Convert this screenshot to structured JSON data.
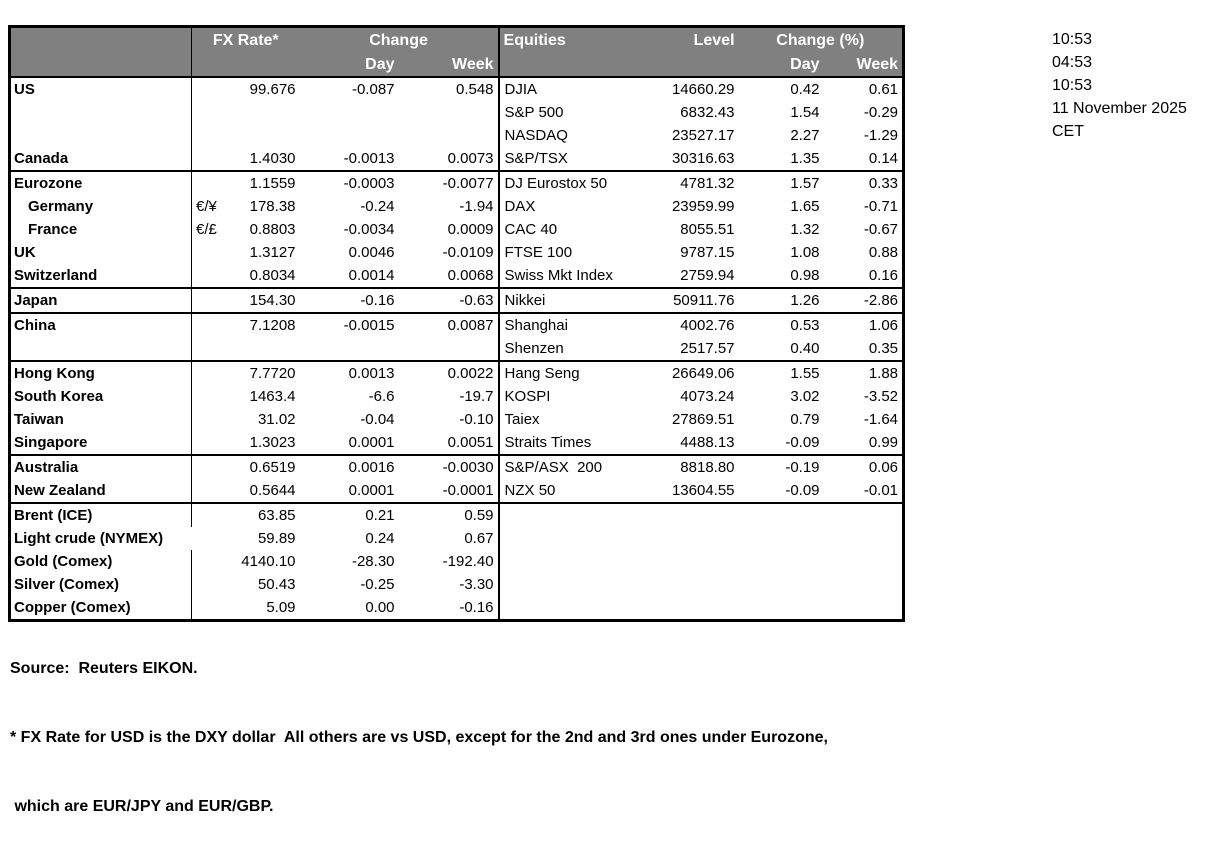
{
  "colors": {
    "header_bg": "#808080",
    "header_text": "#ffffff",
    "border": "#000000"
  },
  "timestamps": [
    "10:53",
    "04:53",
    "10:53",
    "11 November 2025",
    "CET"
  ],
  "footer": {
    "source": "Source:  Reuters EIKON.",
    "note1": "* FX Rate for USD is the DXY dollar  All others are vs USD, except for the 2nd and 3rd ones under Eurozone,",
    "note2": " which are EUR/JPY and EUR/GBP."
  },
  "table": {
    "header": {
      "fx_rate_label": "FX Rate*",
      "change_label": "Change",
      "equities_label": "Equities",
      "level_label": "Level",
      "change_pct_label": "Change (%)",
      "day_label": "Day",
      "week_label": "Week"
    },
    "rows": [
      {
        "name": "US",
        "sym": "",
        "rate": "99.676",
        "day": "-0.087",
        "week": "0.548",
        "eq": "DJIA",
        "level": "14660.29",
        "eq_day": "0.42",
        "eq_week": "0.61"
      },
      {
        "name": "",
        "eq": "S&P 500",
        "level": "6832.43",
        "eq_day": "1.54",
        "eq_week": "-0.29"
      },
      {
        "name": "",
        "eq": "NASDAQ",
        "level": "23527.17",
        "eq_day": "2.27",
        "eq_week": "-1.29"
      },
      {
        "name": "Canada",
        "rate": "1.4030",
        "day": "-0.0013",
        "week": "0.0073",
        "eq": "S&P/TSX",
        "level": "30316.63",
        "eq_day": "1.35",
        "eq_week": "0.14"
      },
      {
        "name": "Eurozone",
        "rate": "1.1559",
        "day": "-0.0003",
        "week": "-0.0077",
        "eq": "DJ Eurostox 50",
        "level": "4781.32",
        "eq_day": "1.57",
        "eq_week": "0.33",
        "section": true
      },
      {
        "name": "Germany",
        "indent": true,
        "sym": "€/¥",
        "rate": "178.38",
        "day": "-0.24",
        "week": "-1.94",
        "eq": "DAX",
        "level": "23959.99",
        "eq_day": "1.65",
        "eq_week": "-0.71"
      },
      {
        "name": "France",
        "indent": true,
        "sym": "€/£",
        "rate": "0.8803",
        "day": "-0.0034",
        "week": "0.0009",
        "eq": "CAC 40",
        "level": "8055.51",
        "eq_day": "1.32",
        "eq_week": "-0.67"
      },
      {
        "name": "UK",
        "rate": "1.3127",
        "day": "0.0046",
        "week": "-0.0109",
        "eq": "FTSE 100",
        "level": "9787.15",
        "eq_day": "1.08",
        "eq_week": "0.88"
      },
      {
        "name": "Switzerland",
        "rate": "0.8034",
        "day": "0.0014",
        "week": "0.0068",
        "eq": "Swiss Mkt Index",
        "level": "2759.94",
        "eq_day": "0.98",
        "eq_week": "0.16"
      },
      {
        "name": "Japan",
        "rate": "154.30",
        "day": "-0.16",
        "week": "-0.63",
        "eq": "Nikkei",
        "level": "50911.76",
        "eq_day": "1.26",
        "eq_week": "-2.86",
        "section": true
      },
      {
        "name": "China",
        "rate": "7.1208",
        "day": "-0.0015",
        "week": "0.0087",
        "eq": "Shanghai",
        "level": "4002.76",
        "eq_day": "0.53",
        "eq_week": "1.06",
        "section": true
      },
      {
        "name": "",
        "eq": "Shenzen",
        "level": "2517.57",
        "eq_day": "0.40",
        "eq_week": "0.35"
      },
      {
        "name": "Hong Kong",
        "rate": "7.7720",
        "day": "0.0013",
        "week": "0.0022",
        "eq": "Hang Seng",
        "level": "26649.06",
        "eq_day": "1.55",
        "eq_week": "1.88",
        "section": true
      },
      {
        "name": "South Korea",
        "rate": "1463.4",
        "day": "-6.6",
        "week": "-19.7",
        "eq": "KOSPI",
        "level": "4073.24",
        "eq_day": "3.02",
        "eq_week": "-3.52"
      },
      {
        "name": "Taiwan",
        "rate": "31.02",
        "day": "-0.04",
        "week": "-0.10",
        "eq": "Taiex",
        "level": "27869.51",
        "eq_day": "0.79",
        "eq_week": "-1.64"
      },
      {
        "name": "Singapore",
        "rate": "1.3023",
        "day": "0.0001",
        "week": "0.0051",
        "eq": "Straits Times",
        "level": "4488.13",
        "eq_day": "-0.09",
        "eq_week": "0.99"
      },
      {
        "name": "Australia",
        "rate": "0.6519",
        "day": "0.0016",
        "week": "-0.0030",
        "eq": "S&P/ASX  200",
        "level": "8818.80",
        "eq_day": "-0.19",
        "eq_week": "0.06",
        "section": true
      },
      {
        "name": "New Zealand",
        "rate": "0.5644",
        "day": "0.0001",
        "week": "-0.0001",
        "eq": "NZX 50",
        "level": "13604.55",
        "eq_day": "-0.09",
        "eq_week": "-0.01"
      },
      {
        "name": "Brent (ICE)",
        "rate": "63.85",
        "day": "0.21",
        "week": "0.59",
        "section": true
      },
      {
        "name": "Light crude (NYMEX)",
        "rate": "59.89",
        "day": "0.24",
        "week": "0.67",
        "no_div": true
      },
      {
        "name": "Gold (Comex)",
        "rate": "4140.10",
        "day": "-28.30",
        "week": "-192.40"
      },
      {
        "name": "Silver (Comex)",
        "rate": "50.43",
        "day": "-0.25",
        "week": "-3.30"
      },
      {
        "name": "Copper (Comex)",
        "rate": "5.09",
        "day": "0.00",
        "week": "-0.16"
      }
    ]
  }
}
